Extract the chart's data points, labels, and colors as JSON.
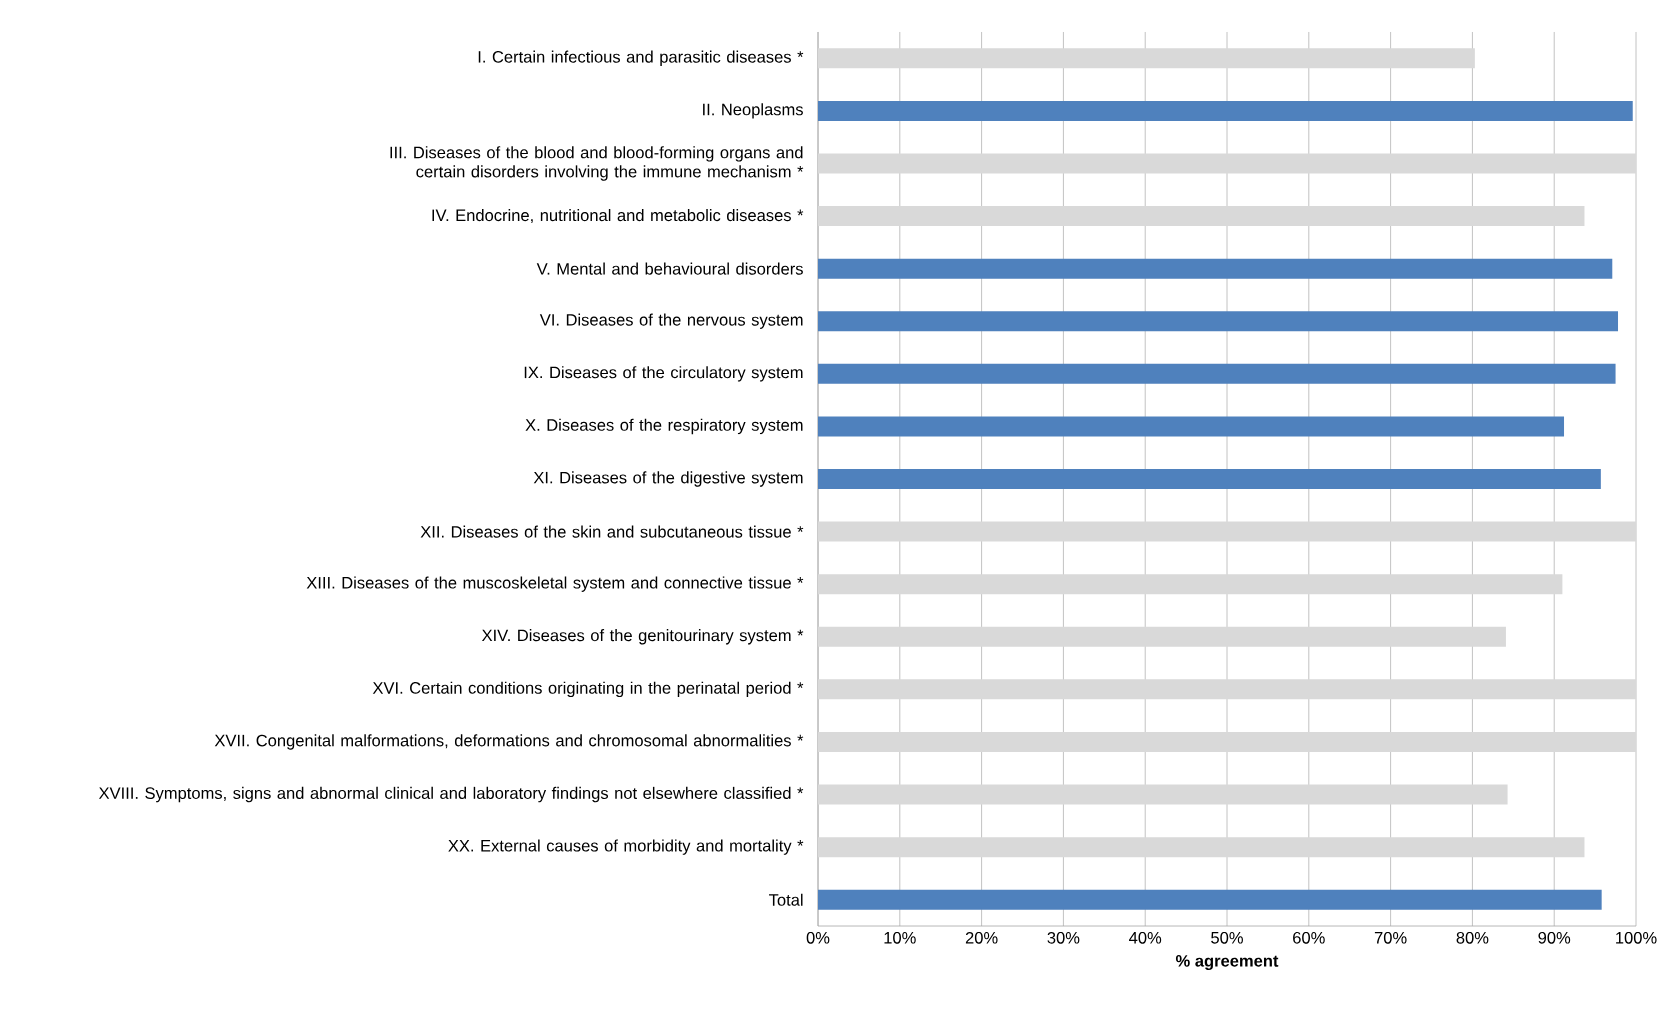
{
  "chart_data": {
    "type": "bar",
    "orientation": "horizontal",
    "xlabel": "% agreement",
    "categories": [
      "I. Certain infectious and parasitic diseases *",
      "II. Neoplasms",
      "III. Diseases of the blood and blood-forming organs and certain disorders involving the immune mechanism *",
      "IV. Endocrine, nutritional and metabolic diseases *",
      "V. Mental and behavioural disorders",
      "VI. Diseases of the nervous system",
      "IX. Diseases of the circulatory system",
      "X. Diseases of the respiratory system",
      "XI. Diseases of the digestive system",
      "XII. Diseases of the skin and subcutaneous tissue *",
      "XIII. Diseases of the muscoskeletal system and connective tissue *",
      "XIV. Diseases of the genitourinary system *",
      "XVI. Certain conditions originating in the perinatal period *",
      "XVII. Congenital malformations, deformations and chromosomal abnormalities *",
      "XVIII. Symptoms, signs and abnormal clinical and laboratory findings not elsewhere classified *",
      "XX. External causes of morbidity and mortality *",
      "Total"
    ],
    "values": [
      80.3,
      99.6,
      100,
      93.7,
      97.1,
      97.8,
      97.5,
      91.2,
      95.7,
      100,
      91.0,
      84.1,
      100,
      100,
      84.3,
      93.7,
      95.8
    ],
    "colors": [
      "#d9d9d9",
      "#4f81bd",
      "#d9d9d9",
      "#d9d9d9",
      "#4f81bd",
      "#4f81bd",
      "#4f81bd",
      "#4f81bd",
      "#4f81bd",
      "#d9d9d9",
      "#d9d9d9",
      "#d9d9d9",
      "#d9d9d9",
      "#d9d9d9",
      "#d9d9d9",
      "#d9d9d9",
      "#4f81bd"
    ],
    "xlim": [
      0,
      100
    ],
    "xticks": [
      {
        "value": 0,
        "label": "0%"
      },
      {
        "value": 10,
        "label": "10%"
      },
      {
        "value": 20,
        "label": "20%"
      },
      {
        "value": 30,
        "label": "30%"
      },
      {
        "value": 40,
        "label": "40%"
      },
      {
        "value": 50,
        "label": "50%"
      },
      {
        "value": 60,
        "label": "60%"
      },
      {
        "value": 70,
        "label": "70%"
      },
      {
        "value": 80,
        "label": "80%"
      },
      {
        "value": 90,
        "label": "90%"
      },
      {
        "value": 100,
        "label": "100%"
      }
    ],
    "grid": "x"
  }
}
